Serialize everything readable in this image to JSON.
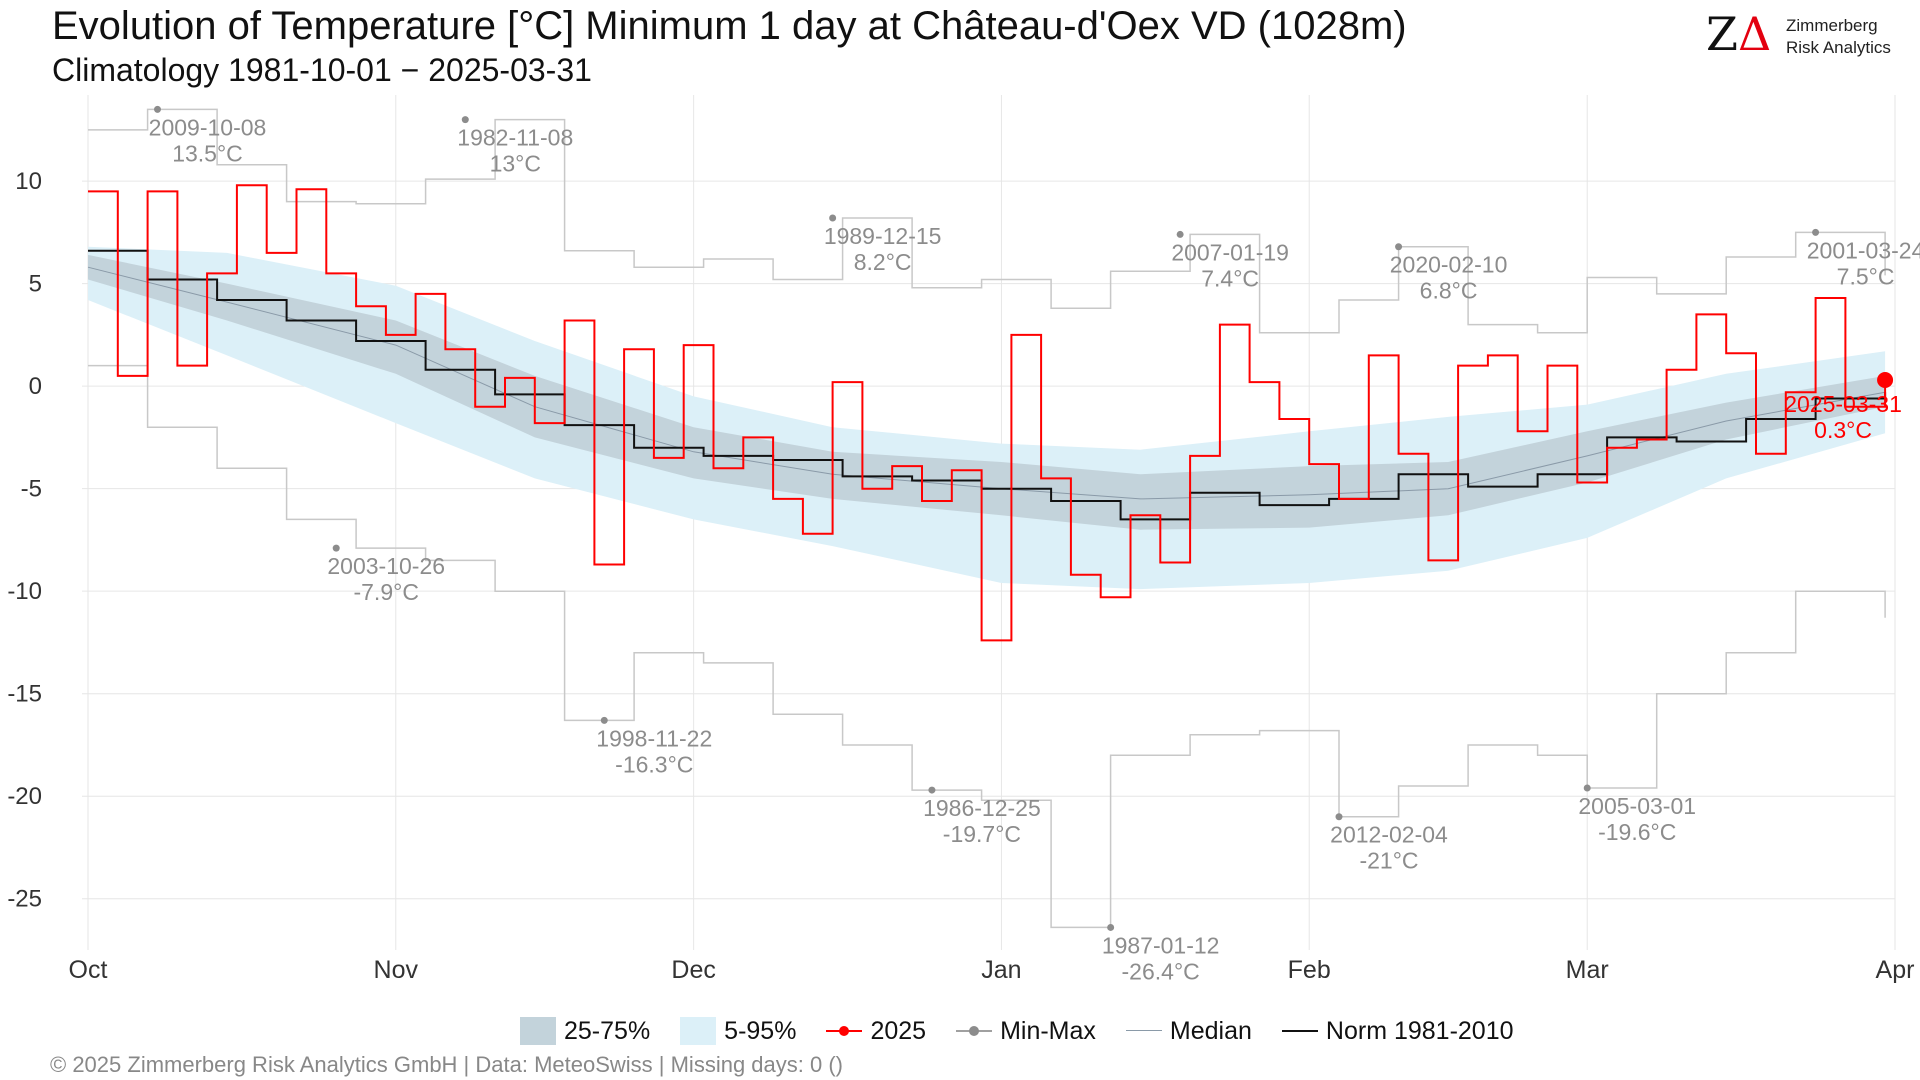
{
  "header": {
    "title": "Evolution of Temperature [°C] Minimum 1 day at Château-d'Oex  VD (1028m)",
    "subtitle": "Climatology 1981-10-01 − 2025-03-31"
  },
  "logo": {
    "mark": "Z",
    "mark_delta": "Δ",
    "line1": "Zimmerberg",
    "line2": "Risk Analytics"
  },
  "legend": {
    "iqr": "25-75%",
    "p5_95": "5-95%",
    "current": "2025",
    "minmax": "Min-Max",
    "median": "Median",
    "norm": "Norm 1981-2010"
  },
  "footer": "©  2025 Zimmerberg Risk Analytics GmbH | Data: MeteoSwiss | Missing days: 0 ()",
  "colors": {
    "current": "#ff0000",
    "norm": "#111111",
    "median": "#8a9aa8",
    "minmax": "#c8c8c8",
    "band_iqr": "#c3d3db",
    "band_p5_95": "#dcf0f8",
    "annotation": "#8c8c8c",
    "grid": "#e6e6e6"
  },
  "chart_data": {
    "type": "line",
    "x_unit": "day",
    "x_start": "2024-10-01",
    "x_end": "2025-03-31",
    "xlim": [
      "2024-10-01",
      "2025-04-01"
    ],
    "ylim": [
      -27.5,
      14.2
    ],
    "y_ticks": [
      10,
      5,
      0,
      -5,
      -10,
      -15,
      -20,
      -25
    ],
    "x_ticks": [
      {
        "label": "Oct",
        "date": "2024-10-01"
      },
      {
        "label": "Nov",
        "date": "2024-11-01"
      },
      {
        "label": "Dec",
        "date": "2024-12-01"
      },
      {
        "label": "Jan",
        "date": "2025-01-01"
      },
      {
        "label": "Feb",
        "date": "2025-02-01"
      },
      {
        "label": "Mar",
        "date": "2025-03-01"
      },
      {
        "label": "Apr",
        "date": "2025-04-01"
      }
    ],
    "grid": true,
    "legend_position": "bottom",
    "bands": {
      "p5_95": {
        "x": [
          "2024-10-01",
          "2024-10-15",
          "2024-11-01",
          "2024-11-15",
          "2024-12-01",
          "2024-12-15",
          "2025-01-01",
          "2025-01-15",
          "2025-02-01",
          "2025-02-15",
          "2025-03-01",
          "2025-03-15",
          "2025-03-31"
        ],
        "lower": [
          4.2,
          1.5,
          -1.8,
          -4.5,
          -6.5,
          -7.8,
          -9.6,
          -9.9,
          -9.6,
          -9.0,
          -7.4,
          -4.5,
          -2.3
        ],
        "upper": [
          6.8,
          6.5,
          4.9,
          2.2,
          -0.5,
          -2.0,
          -2.8,
          -3.1,
          -2.2,
          -1.5,
          -0.9,
          0.6,
          1.7
        ]
      },
      "iqr": {
        "x": [
          "2024-10-01",
          "2024-10-15",
          "2024-11-01",
          "2024-11-15",
          "2024-12-01",
          "2024-12-15",
          "2025-01-01",
          "2025-01-15",
          "2025-02-01",
          "2025-02-15",
          "2025-03-01",
          "2025-03-15",
          "2025-03-31"
        ],
        "lower": [
          5.2,
          3.2,
          0.6,
          -2.5,
          -4.5,
          -5.5,
          -6.3,
          -7.0,
          -6.9,
          -6.3,
          -4.7,
          -2.6,
          -1.0
        ],
        "upper": [
          6.4,
          5.0,
          3.2,
          0.5,
          -2.0,
          -3.2,
          -3.7,
          -4.3,
          -3.9,
          -3.7,
          -2.2,
          -0.8,
          0.5
        ]
      }
    },
    "series": [
      {
        "name": "Median",
        "x": [
          "2024-10-01",
          "2024-10-15",
          "2024-11-01",
          "2024-11-15",
          "2024-12-01",
          "2024-12-15",
          "2025-01-01",
          "2025-01-15",
          "2025-02-01",
          "2025-02-15",
          "2025-03-01",
          "2025-03-15",
          "2025-03-31"
        ],
        "y": [
          5.8,
          4.1,
          2.0,
          -1.0,
          -3.2,
          -4.3,
          -5.0,
          -5.5,
          -5.3,
          -5.0,
          -3.4,
          -1.7,
          -0.3
        ]
      },
      {
        "name": "Norm 1981-2010",
        "x": [
          "2024-10-01",
          "2024-10-07",
          "2024-10-14",
          "2024-10-21",
          "2024-10-28",
          "2024-11-04",
          "2024-11-11",
          "2024-11-18",
          "2024-11-25",
          "2024-12-02",
          "2024-12-09",
          "2024-12-16",
          "2024-12-23",
          "2024-12-30",
          "2025-01-06",
          "2025-01-13",
          "2025-01-20",
          "2025-01-27",
          "2025-02-03",
          "2025-02-10",
          "2025-02-17",
          "2025-02-24",
          "2025-03-03",
          "2025-03-10",
          "2025-03-17",
          "2025-03-24",
          "2025-03-31"
        ],
        "y": [
          6.6,
          5.2,
          4.2,
          3.2,
          2.2,
          0.8,
          -0.4,
          -1.9,
          -3.0,
          -3.4,
          -3.6,
          -4.4,
          -4.6,
          -5.0,
          -5.6,
          -6.5,
          -5.2,
          -5.8,
          -5.5,
          -4.3,
          -4.9,
          -4.3,
          -2.5,
          -2.7,
          -1.6,
          -0.6,
          -0.3
        ]
      },
      {
        "name": "2025",
        "x": [
          "2024-10-01",
          "2024-10-04",
          "2024-10-07",
          "2024-10-10",
          "2024-10-13",
          "2024-10-16",
          "2024-10-19",
          "2024-10-22",
          "2024-10-25",
          "2024-10-28",
          "2024-10-31",
          "2024-11-03",
          "2024-11-06",
          "2024-11-09",
          "2024-11-12",
          "2024-11-15",
          "2024-11-18",
          "2024-11-21",
          "2024-11-24",
          "2024-11-27",
          "2024-11-30",
          "2024-12-03",
          "2024-12-06",
          "2024-12-09",
          "2024-12-12",
          "2024-12-15",
          "2024-12-18",
          "2024-12-21",
          "2024-12-24",
          "2024-12-27",
          "2024-12-30",
          "2025-01-02",
          "2025-01-05",
          "2025-01-08",
          "2025-01-11",
          "2025-01-14",
          "2025-01-17",
          "2025-01-20",
          "2025-01-23",
          "2025-01-26",
          "2025-01-29",
          "2025-02-01",
          "2025-02-04",
          "2025-02-07",
          "2025-02-10",
          "2025-02-13",
          "2025-02-16",
          "2025-02-19",
          "2025-02-22",
          "2025-02-25",
          "2025-02-28",
          "2025-03-03",
          "2025-03-06",
          "2025-03-09",
          "2025-03-12",
          "2025-03-15",
          "2025-03-18",
          "2025-03-21",
          "2025-03-24",
          "2025-03-27",
          "2025-03-31"
        ],
        "y": [
          9.5,
          0.5,
          9.5,
          1.0,
          5.5,
          9.8,
          6.5,
          9.6,
          5.5,
          3.9,
          2.5,
          4.5,
          1.8,
          -1.0,
          0.4,
          -1.8,
          3.2,
          -8.7,
          1.8,
          -3.5,
          2.0,
          -4.0,
          -2.5,
          -5.5,
          -7.2,
          0.2,
          -5.0,
          -3.9,
          -5.6,
          -4.1,
          -12.4,
          2.5,
          -4.5,
          -9.2,
          -10.3,
          -6.3,
          -8.6,
          -3.4,
          3.0,
          0.2,
          -1.6,
          -3.8,
          -5.5,
          1.5,
          -3.3,
          -8.5,
          1.0,
          1.5,
          -2.2,
          1.0,
          -4.7,
          -3.0,
          -2.6,
          0.8,
          3.5,
          1.6,
          -3.3,
          -0.3,
          4.3,
          -1.0,
          0.3
        ]
      }
    ],
    "minmax_envelope": {
      "x": [
        "2024-10-01",
        "2024-10-07",
        "2024-10-14",
        "2024-10-21",
        "2024-10-28",
        "2024-11-04",
        "2024-11-11",
        "2024-11-18",
        "2024-11-25",
        "2024-12-02",
        "2024-12-09",
        "2024-12-16",
        "2024-12-23",
        "2024-12-30",
        "2025-01-06",
        "2025-01-12",
        "2025-01-20",
        "2025-01-27",
        "2025-02-04",
        "2025-02-10",
        "2025-02-17",
        "2025-02-24",
        "2025-03-01",
        "2025-03-08",
        "2025-03-15",
        "2025-03-22",
        "2025-03-31"
      ],
      "max": [
        12.5,
        13.5,
        10.8,
        9.0,
        8.9,
        10.1,
        13.0,
        6.6,
        5.8,
        6.2,
        5.2,
        8.2,
        4.8,
        5.2,
        3.8,
        5.6,
        7.4,
        2.6,
        4.2,
        6.8,
        3.0,
        2.6,
        5.3,
        4.5,
        6.3,
        7.5,
        5.4
      ],
      "min": [
        1.0,
        -2.0,
        -4.0,
        -6.5,
        -7.9,
        -8.5,
        -10.0,
        -16.3,
        -13.0,
        -13.5,
        -16.0,
        -17.5,
        -19.7,
        -20.2,
        -26.4,
        -18.0,
        -17.0,
        -16.8,
        -21.0,
        -19.5,
        -17.5,
        -18.0,
        -19.6,
        -15.0,
        -13.0,
        -10.0,
        -11.3
      ]
    },
    "annotations": [
      {
        "date_label": "2009-10-08",
        "value_label": "13.5°C",
        "x": "2024-10-08",
        "y": 13.5,
        "position": "above"
      },
      {
        "date_label": "1982-11-08",
        "value_label": "13°C",
        "x": "2024-11-08",
        "y": 13.0,
        "position": "above"
      },
      {
        "date_label": "1989-12-15",
        "value_label": "8.2°C",
        "x": "2024-12-15",
        "y": 8.2,
        "position": "above"
      },
      {
        "date_label": "2007-01-19",
        "value_label": "7.4°C",
        "x": "2025-01-19",
        "y": 7.4,
        "position": "above"
      },
      {
        "date_label": "2020-02-10",
        "value_label": "6.8°C",
        "x": "2025-02-10",
        "y": 6.8,
        "position": "above"
      },
      {
        "date_label": "2001-03-24",
        "value_label": "7.5°C",
        "x": "2025-03-24",
        "y": 7.5,
        "position": "above"
      },
      {
        "date_label": "2003-10-26",
        "value_label": "-7.9°C",
        "x": "2024-10-26",
        "y": -7.9,
        "position": "below"
      },
      {
        "date_label": "1998-11-22",
        "value_label": "-16.3°C",
        "x": "2024-11-22",
        "y": -16.3,
        "position": "below"
      },
      {
        "date_label": "1986-12-25",
        "value_label": "-19.7°C",
        "x": "2024-12-25",
        "y": -19.7,
        "position": "below"
      },
      {
        "date_label": "1987-01-12",
        "value_label": "-26.4°C",
        "x": "2025-01-12",
        "y": -26.4,
        "position": "below"
      },
      {
        "date_label": "2012-02-04",
        "value_label": "-21°C",
        "x": "2025-02-04",
        "y": -21.0,
        "position": "below"
      },
      {
        "date_label": "2005-03-01",
        "value_label": "-19.6°C",
        "x": "2025-03-01",
        "y": -19.6,
        "position": "below"
      }
    ],
    "current_label": {
      "date_label": "2025-03-31",
      "value_label": "0.3°C",
      "x": "2025-03-31",
      "y": 0.3
    }
  }
}
